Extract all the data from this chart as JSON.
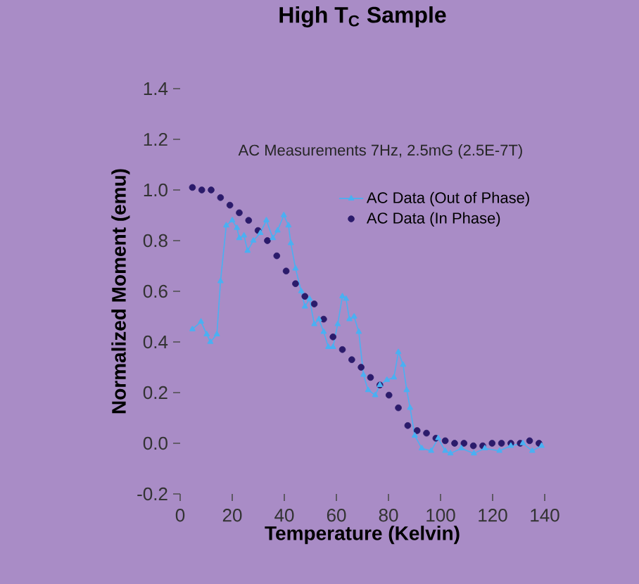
{
  "chart_data": {
    "type": "scatter",
    "title": "High T$_{C}$ Sample",
    "xlabel": "Temperature (Kelvin)",
    "ylabel": "Normalized Moment (emu)",
    "annotations": [
      "AC Measurements 7Hz, 2.5mG (2.5E-7T)"
    ],
    "xlim": [
      0,
      140
    ],
    "xticks": [
      0,
      20,
      40,
      60,
      80,
      100,
      120,
      140
    ],
    "ylim": [
      -0.2,
      1.4
    ],
    "yticks": [
      -0.2,
      {
        "value": 0,
        "label": "0.0"
      },
      0.2,
      0.4,
      0.6,
      0.8,
      {
        "value": 1,
        "label": "1.0"
      },
      1.2,
      1.4
    ],
    "legend": "top right",
    "series": [
      {
        "name": "AC Data (Out of Phase)",
        "type": "line",
        "marker": "triangle",
        "line_style": "solid",
        "color": "#4ab0f2",
        "x": [
          4.7,
          8.0,
          10.2,
          11.6,
          14.1,
          15.5,
          17.7,
          20.0,
          21.8,
          22.7,
          24.5,
          25.9,
          28.1,
          30.8,
          33.1,
          35.6,
          37.4,
          39.8,
          41.6,
          42.5,
          44.3,
          46.5,
          47.9,
          49.7,
          51.5,
          53.3,
          55.1,
          56.9,
          58.7,
          60.5,
          62.3,
          63.7,
          65.0,
          66.8,
          68.6,
          70.4,
          72.2,
          74.9,
          76.7,
          79.4,
          82.1,
          83.8,
          85.6,
          87.0,
          88.3,
          90.1,
          92.8,
          96.4,
          99.1,
          101.8,
          103.8,
          108,
          112.8,
          117,
          122.6,
          127,
          131.6,
          135.2,
          138.8
        ],
        "values": [
          0.45,
          0.48,
          0.43,
          0.4,
          0.43,
          0.64,
          0.86,
          0.88,
          0.85,
          0.81,
          0.82,
          0.76,
          0.8,
          0.83,
          0.88,
          0.81,
          0.84,
          0.9,
          0.86,
          0.79,
          0.69,
          0.6,
          0.54,
          0.57,
          0.47,
          0.49,
          0.44,
          0.38,
          0.38,
          0.47,
          0.58,
          0.57,
          0.49,
          0.5,
          0.44,
          0.27,
          0.21,
          0.19,
          0.23,
          0.25,
          0.26,
          0.36,
          0.31,
          0.21,
          0.14,
          0.03,
          -0.02,
          -0.03,
          0.02,
          -0.03,
          -0.04,
          -0.02,
          -0.04,
          -0.02,
          -0.03,
          -0.01,
          0.0,
          -0.03,
          -0.01
        ]
      },
      {
        "name": "AC Data (In Phase)",
        "type": "scatter",
        "marker": "circle",
        "color": "#2b1b6b",
        "x": [
          4.7,
          8.3,
          11.9,
          15.5,
          19.1,
          22.7,
          26.3,
          29.9,
          33.5,
          37.1,
          40.7,
          44.3,
          47.9,
          51.5,
          55.1,
          58.7,
          62.3,
          65.9,
          69.5,
          73.1,
          76.7,
          80.2,
          83.8,
          87.4,
          91.0,
          94.6,
          98.2,
          101.8,
          105.4,
          109,
          112.6,
          116.2,
          119.8,
          123.4,
          127,
          130.6,
          134.2,
          137.8
        ],
        "values": [
          1.01,
          1.0,
          1.0,
          0.97,
          0.94,
          0.91,
          0.88,
          0.84,
          0.8,
          0.74,
          0.68,
          0.63,
          0.58,
          0.55,
          0.49,
          0.42,
          0.37,
          0.33,
          0.3,
          0.26,
          0.23,
          0.19,
          0.14,
          0.07,
          0.05,
          0.04,
          0.02,
          0.01,
          0.0,
          0.0,
          -0.01,
          -0.01,
          0.0,
          0.0,
          0.0,
          0.0,
          0.01,
          0.0
        ]
      }
    ]
  }
}
